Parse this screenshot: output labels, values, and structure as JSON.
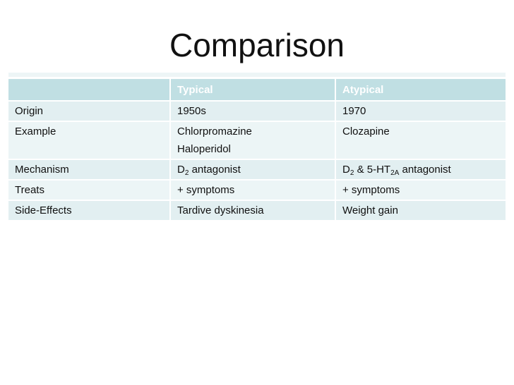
{
  "title": "Comparison",
  "table": {
    "columns": [
      "",
      "Typical",
      "Atypical"
    ],
    "rows": [
      {
        "label": "Origin",
        "typical": "1950s",
        "atypical": "1970"
      },
      {
        "label": "Example",
        "typical": "Chlorpromazine\nHaloperidol",
        "atypical": "Clozapine"
      },
      {
        "label": "Mechanism",
        "typical": "D~2~ antagonist",
        "atypical": "D~2~ & 5-HT~2A~ antagonist"
      },
      {
        "label": "Treats",
        "typical": "+ symptoms",
        "atypical": "+ symptoms"
      },
      {
        "label": "Side-Effects",
        "typical": "Tardive dyskinesia",
        "atypical": "Weight gain"
      }
    ]
  },
  "colors": {
    "header_bg": "#c0dfe3",
    "header_text": "#ffffff",
    "row_odd_bg": "#e2eff1",
    "row_even_bg": "#ecf5f6",
    "top_strip": "#edf5f6",
    "background": "#ffffff",
    "title_text": "#111111",
    "body_text": "#101010"
  }
}
